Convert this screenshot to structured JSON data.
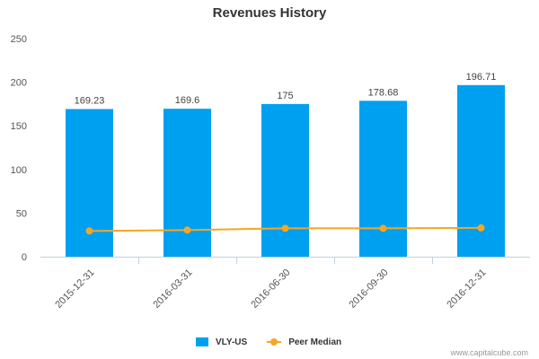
{
  "chart_data": {
    "type": "bar",
    "title": "Revenues History",
    "categories": [
      "2015-12-31",
      "2016-03-31",
      "2016-06-30",
      "2016-09-30",
      "2016-12-31"
    ],
    "series": [
      {
        "name": "VLY-US",
        "type": "bar",
        "color": "#00a0f0",
        "values": [
          169.23,
          169.6,
          175,
          178.68,
          196.71
        ],
        "labels": [
          "169.23",
          "169.6",
          "175",
          "178.68",
          "196.71"
        ]
      },
      {
        "name": "Peer Median",
        "type": "line",
        "color": "#f5a623",
        "values": [
          29.5,
          30.5,
          32.5,
          32.5,
          33
        ]
      }
    ],
    "ylim": [
      0,
      250
    ],
    "yticks": [
      0,
      50,
      100,
      150,
      200,
      250
    ],
    "xlabel": "",
    "ylabel": "",
    "grid": false,
    "legend": "bottom-center"
  },
  "watermark": "www.capitalcube.com"
}
